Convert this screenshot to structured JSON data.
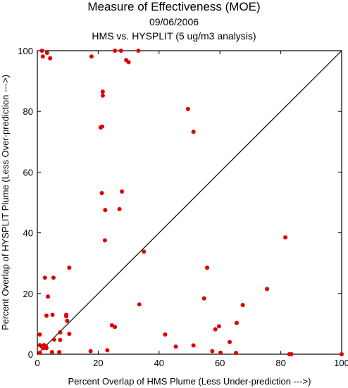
{
  "chart_data": {
    "type": "scatter",
    "title": "Measure of Effectiveness (MOE)",
    "subtitle": "09/06/2006",
    "subtitle2": "HMS vs. HYSPLIT  (5 ug/m3 analysis)",
    "xlabel": "Percent Overlap of HMS Plume (Less Under-prediction --->)",
    "ylabel": "Percent Overlap of HYSPLIT Plume (Less Over-prediction --->)",
    "xlim": [
      0,
      100
    ],
    "ylim": [
      0,
      100
    ],
    "xticks": [
      "0",
      "20",
      "40",
      "60",
      "80",
      "100"
    ],
    "yticks": [
      "0",
      "20",
      "40",
      "60",
      "80",
      "100"
    ],
    "diagonal_line": true,
    "grid": false,
    "point_color": "#e00000",
    "points": [
      [
        1.5,
        100
      ],
      [
        3.2,
        99.3
      ],
      [
        4.2,
        97.5
      ],
      [
        1.8,
        98.1
      ],
      [
        17.8,
        98.1
      ],
      [
        25.5,
        100
      ],
      [
        27.5,
        100
      ],
      [
        29.2,
        96.9
      ],
      [
        30,
        96.2
      ],
      [
        33.2,
        100
      ],
      [
        21.5,
        86.5
      ],
      [
        21.5,
        85.2
      ],
      [
        20.8,
        74.7
      ],
      [
        21.3,
        75
      ],
      [
        49.5,
        80.8
      ],
      [
        51.3,
        73.3
      ],
      [
        21.2,
        53.1
      ],
      [
        27.8,
        53.6
      ],
      [
        22.3,
        47.5
      ],
      [
        27,
        47.8
      ],
      [
        22.2,
        37.5
      ],
      [
        35,
        33.8
      ],
      [
        81.5,
        38.5
      ],
      [
        10.5,
        28.5
      ],
      [
        2.5,
        25.2
      ],
      [
        5.3,
        25.2
      ],
      [
        55.8,
        28.5
      ],
      [
        75.5,
        21.5
      ],
      [
        54.8,
        18.4
      ],
      [
        67.5,
        16.2
      ],
      [
        3.5,
        19
      ],
      [
        33.5,
        16.4
      ],
      [
        3,
        12.7
      ],
      [
        5,
        13
      ],
      [
        9.5,
        13
      ],
      [
        9.5,
        12.5
      ],
      [
        9.8,
        11
      ],
      [
        10.5,
        6.7
      ],
      [
        7.5,
        7.2
      ],
      [
        0.8,
        6.5
      ],
      [
        24.5,
        9.5
      ],
      [
        25.5,
        9
      ],
      [
        42,
        6.5
      ],
      [
        59.7,
        9.2
      ],
      [
        58.5,
        8.2
      ],
      [
        65.5,
        10.3
      ],
      [
        5.5,
        4.8
      ],
      [
        7.5,
        4.7
      ],
      [
        0.8,
        3
      ],
      [
        2.2,
        3
      ],
      [
        2.8,
        2.6
      ],
      [
        3,
        2
      ],
      [
        2,
        2
      ],
      [
        1.5,
        2.5
      ],
      [
        45.5,
        2.5
      ],
      [
        51.3,
        2.9
      ],
      [
        63.2,
        4
      ],
      [
        0.8,
        0.5
      ],
      [
        4.8,
        0.7
      ],
      [
        7.2,
        0.7
      ],
      [
        17.5,
        1
      ],
      [
        23,
        1.3
      ],
      [
        57.5,
        1
      ],
      [
        60.2,
        0.5
      ],
      [
        65.3,
        0.4
      ],
      [
        82.8,
        0
      ],
      [
        83.5,
        0
      ],
      [
        100,
        0
      ]
    ]
  }
}
